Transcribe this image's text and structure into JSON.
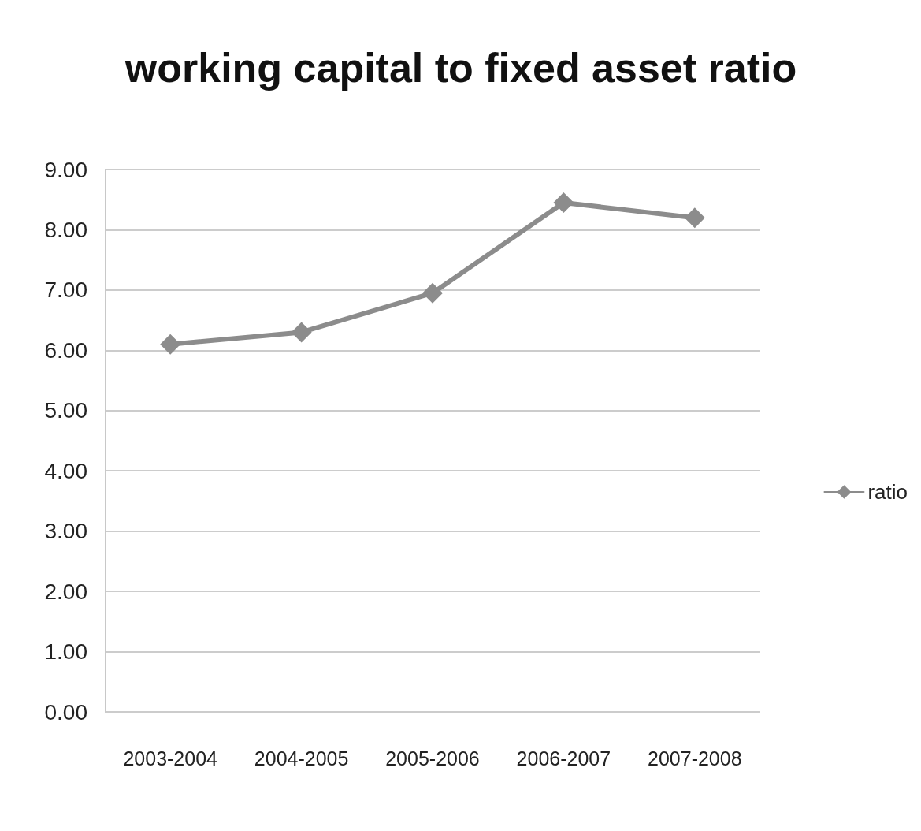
{
  "chart_data": {
    "type": "line",
    "title": "working capital to fixed asset ratio",
    "categories": [
      "2003-2004",
      "2004-2005",
      "2005-2006",
      "2006-2007",
      "2007-2008"
    ],
    "series": [
      {
        "name": "ratio",
        "color": "#8c8c8c",
        "values": [
          6.1,
          6.3,
          6.95,
          8.45,
          8.2
        ]
      }
    ],
    "ylim": [
      0,
      9
    ],
    "yticks": [
      {
        "value": 0,
        "label": "0.00"
      },
      {
        "value": 1,
        "label": "1.00"
      },
      {
        "value": 2,
        "label": "2.00"
      },
      {
        "value": 3,
        "label": "3.00"
      },
      {
        "value": 4,
        "label": "4.00"
      },
      {
        "value": 5,
        "label": "5.00"
      },
      {
        "value": 6,
        "label": "6.00"
      },
      {
        "value": 7,
        "label": "7.00"
      },
      {
        "value": 8,
        "label": "8.00"
      },
      {
        "value": 9,
        "label": "9.00"
      }
    ],
    "grid": "y",
    "legend": "right",
    "marker": "diamond",
    "line_style": "solid"
  }
}
